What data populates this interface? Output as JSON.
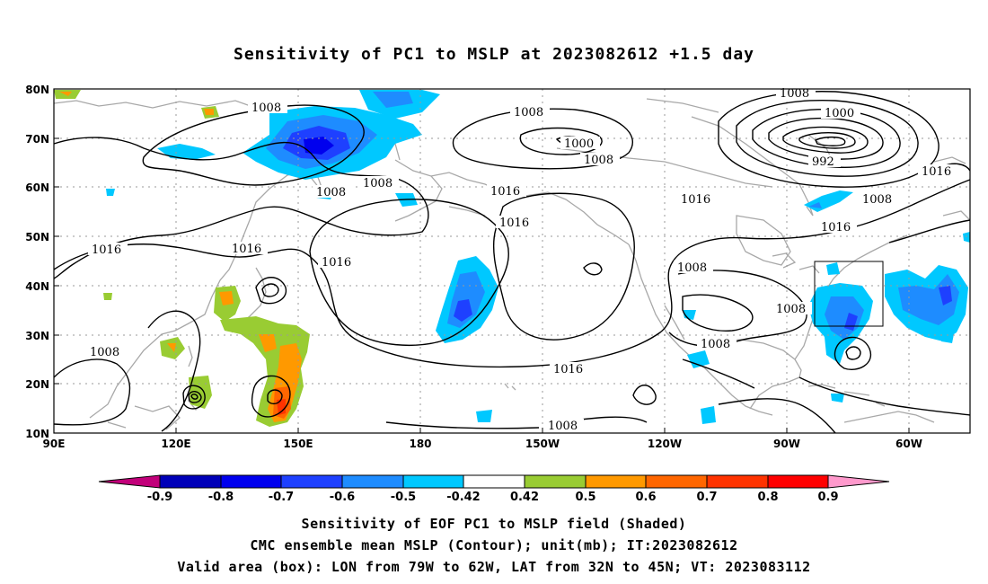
{
  "title": "Sensitivity of PC1 to MSLP at 2023082612 +1.5 day",
  "map": {
    "lat_ticks": [
      "80N",
      "70N",
      "60N",
      "50N",
      "40N",
      "30N",
      "20N",
      "10N"
    ],
    "lon_ticks": [
      "90E",
      "120E",
      "150E",
      "180",
      "150W",
      "120W",
      "90W",
      "60W"
    ],
    "contour_labels": [
      "1008",
      "1008",
      "1008",
      "1008",
      "1008",
      "1000",
      "1008",
      "1016",
      "1000",
      "992",
      "1016",
      "1008",
      "1016",
      "1016",
      "1016",
      "1016",
      "1016",
      "1016",
      "1008",
      "1008",
      "1008",
      "1016",
      "1008",
      "1008"
    ],
    "box": {
      "lon_range": [
        "79W",
        "62W"
      ],
      "lat_range": [
        "32N",
        "45N"
      ]
    }
  },
  "colorbar": {
    "labels": [
      "-0.9",
      "-0.8",
      "-0.7",
      "-0.6",
      "-0.5",
      "-0.42",
      "0.42",
      "0.5",
      "0.6",
      "0.7",
      "0.8",
      "0.9"
    ],
    "colors": [
      "#c2007a",
      "#0000b8",
      "#0000ee",
      "#1e40ff",
      "#1e8cff",
      "#00c8ff",
      "#ffffff",
      "#99cc33",
      "#ff9900",
      "#ff6600",
      "#ff3300",
      "#ff0000",
      "#ff99cc"
    ]
  },
  "captions": [
    "Sensitivity of EOF PC1 to MSLP field (Shaded)",
    "CMC ensemble mean MSLP (Contour); unit(mb); IT:2023082612",
    "Valid area (box): LON from 79W to 62W, LAT from 32N to 45N; VT: 2023083112"
  ]
}
